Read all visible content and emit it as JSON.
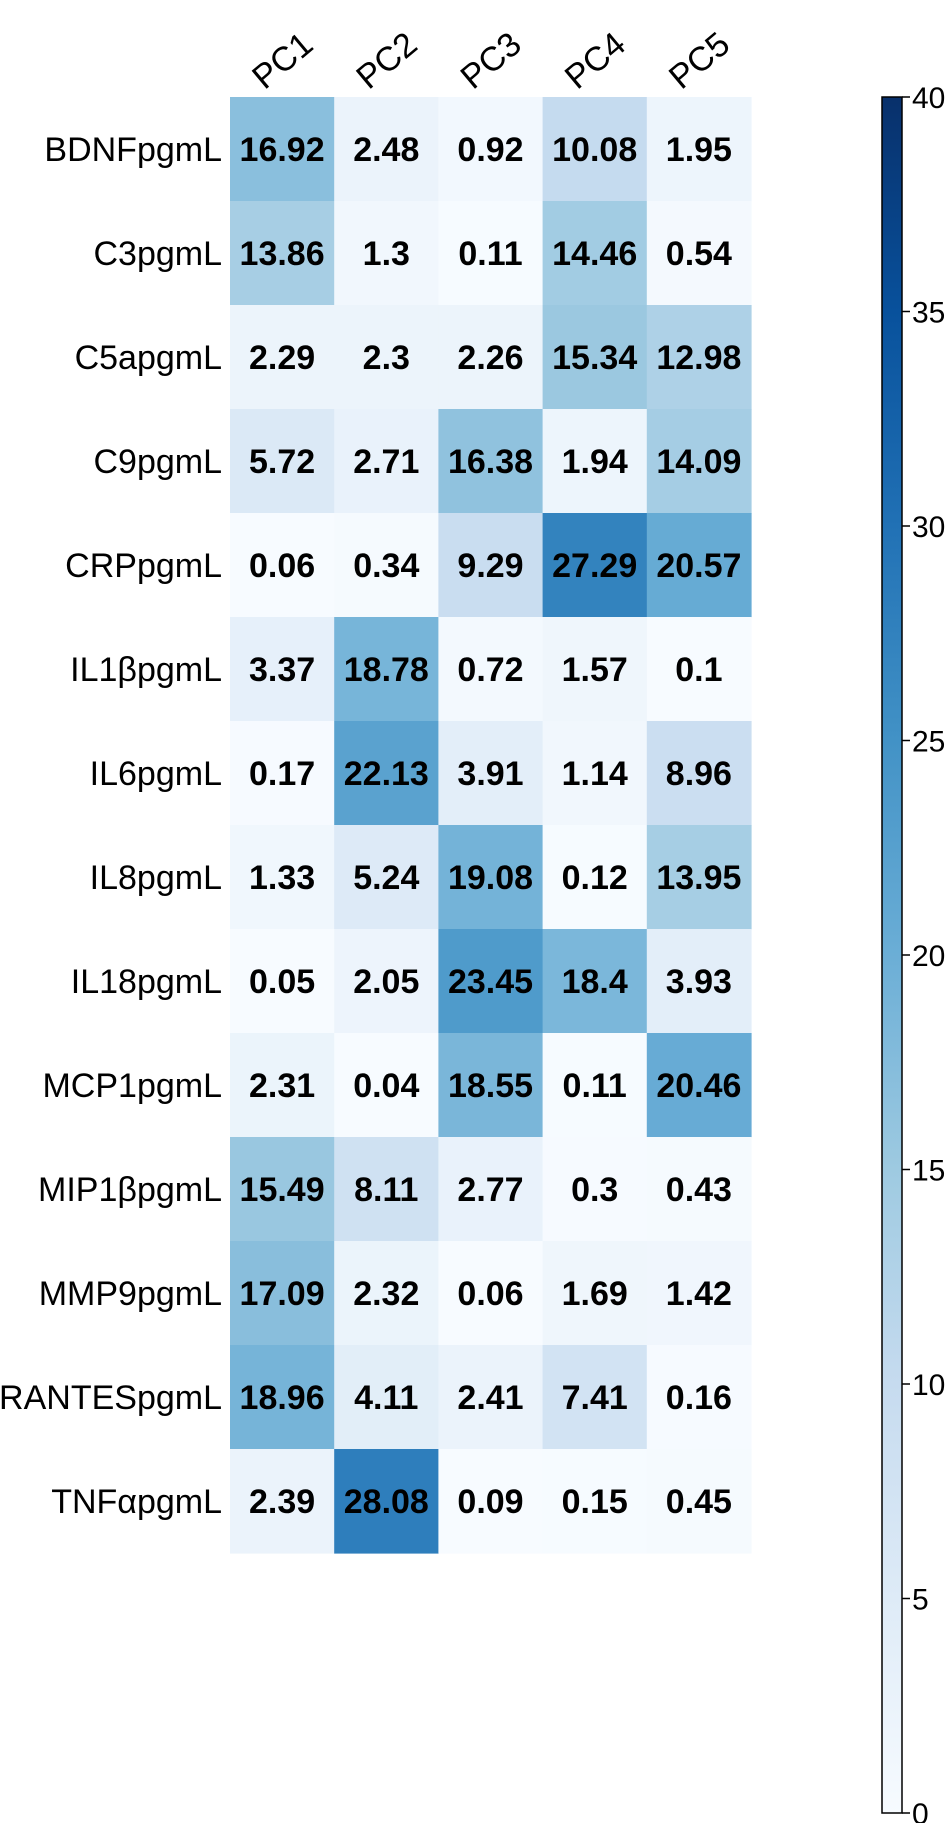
{
  "chart_data": {
    "type": "heatmap",
    "columns": [
      "PC1",
      "PC2",
      "PC3",
      "PC4",
      "PC5"
    ],
    "rows": [
      "BDNFpgmL",
      "C3pgmL",
      "C5apgmL",
      "C9pgmL",
      "CRPpgmL",
      "IL1βpgmL",
      "IL6pgmL",
      "IL8pgmL",
      "IL18pgmL",
      "MCP1pgmL",
      "MIP1βpgmL",
      "MMP9pgmL",
      "RANTESpgmL",
      "TNFαpgmL"
    ],
    "values": [
      [
        16.92,
        2.48,
        0.92,
        10.08,
        1.95
      ],
      [
        13.86,
        1.3,
        0.11,
        14.46,
        0.54
      ],
      [
        2.29,
        2.3,
        2.26,
        15.34,
        12.98
      ],
      [
        5.72,
        2.71,
        16.38,
        1.94,
        14.09
      ],
      [
        0.06,
        0.34,
        9.29,
        27.29,
        20.57
      ],
      [
        3.37,
        18.78,
        0.72,
        1.57,
        0.1
      ],
      [
        0.17,
        22.13,
        3.91,
        1.14,
        8.96
      ],
      [
        1.33,
        5.24,
        19.08,
        0.12,
        13.95
      ],
      [
        0.05,
        2.05,
        23.45,
        18.4,
        3.93
      ],
      [
        2.31,
        0.04,
        18.55,
        0.11,
        20.46
      ],
      [
        15.49,
        8.11,
        2.77,
        0.3,
        0.43
      ],
      [
        17.09,
        2.32,
        0.06,
        1.69,
        1.42
      ],
      [
        18.96,
        4.11,
        2.41,
        7.41,
        0.16
      ],
      [
        2.39,
        28.08,
        0.09,
        0.15,
        0.45
      ]
    ],
    "value_labels": [
      [
        "16.92",
        "2.48",
        "0.92",
        "10.08",
        "1.95"
      ],
      [
        "13.86",
        "1.3",
        "0.11",
        "14.46",
        "0.54"
      ],
      [
        "2.29",
        "2.3",
        "2.26",
        "15.34",
        "12.98"
      ],
      [
        "5.72",
        "2.71",
        "16.38",
        "1.94",
        "14.09"
      ],
      [
        "0.06",
        "0.34",
        "9.29",
        "27.29",
        "20.57"
      ],
      [
        "3.37",
        "18.78",
        "0.72",
        "1.57",
        "0.1"
      ],
      [
        "0.17",
        "22.13",
        "3.91",
        "1.14",
        "8.96"
      ],
      [
        "1.33",
        "5.24",
        "19.08",
        "0.12",
        "13.95"
      ],
      [
        "0.05",
        "2.05",
        "23.45",
        "18.4",
        "3.93"
      ],
      [
        "2.31",
        "0.04",
        "18.55",
        "0.11",
        "20.46"
      ],
      [
        "15.49",
        "8.11",
        "2.77",
        "0.3",
        "0.43"
      ],
      [
        "17.09",
        "2.32",
        "0.06",
        "1.69",
        "1.42"
      ],
      [
        "18.96",
        "4.11",
        "2.41",
        "7.41",
        "0.16"
      ],
      [
        "2.39",
        "28.08",
        "0.09",
        "0.15",
        "0.45"
      ]
    ],
    "colorbar": {
      "range": [
        0,
        40
      ],
      "ticks": [
        0,
        5,
        10,
        15,
        20,
        25,
        30,
        35,
        40
      ],
      "tick_labels": [
        "0",
        "5",
        "10",
        "15",
        "20",
        "25",
        "30",
        "35",
        "40"
      ],
      "colormap": "Blues",
      "color_stops": [
        "#f7fbff",
        "#deebf7",
        "#c6dbef",
        "#9ecae1",
        "#6baed6",
        "#4292c6",
        "#2171b5",
        "#08519c",
        "#08306b"
      ],
      "placement": "right"
    },
    "title": "",
    "xlabel": "",
    "ylabel": ""
  }
}
